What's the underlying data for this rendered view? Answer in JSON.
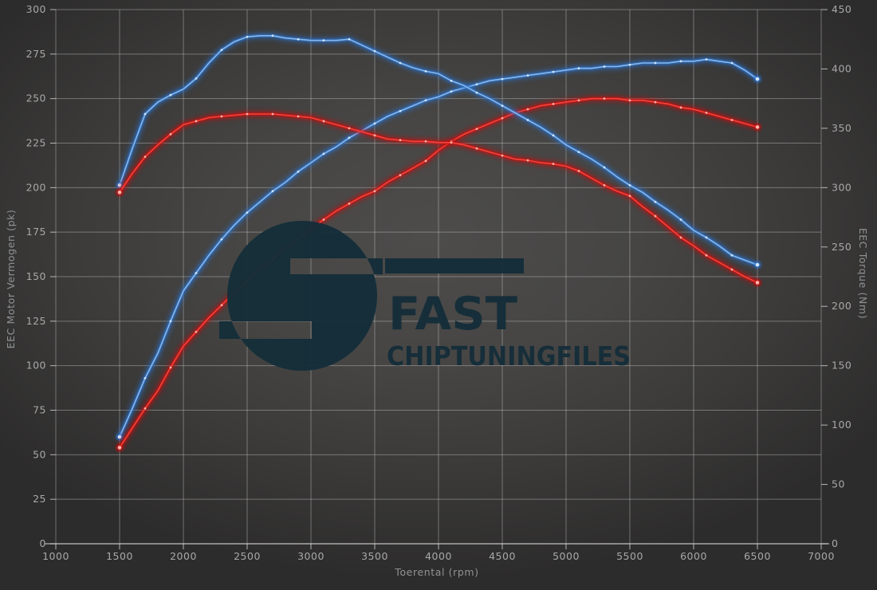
{
  "watermark": {
    "line1": "FAST",
    "line2": "CHIPTUNINGFILES",
    "color": "#152e39",
    "opacity": 0.97
  },
  "colors": {
    "background_center": "#4d4c4b",
    "background_edge": "#2d2c2c",
    "grid": "rgba(205,205,205,0.42)",
    "axis_line": "rgba(225,225,225,0.75)",
    "tick_text": "#a8a8a8",
    "blue": {
      "glow": "#2a72cf",
      "core": "#88b8ea",
      "dot": "#d5e7fa"
    },
    "red": {
      "glow": "#c91111",
      "core": "#f4423a",
      "dot": "#ffb4aa"
    }
  },
  "chart_data": {
    "type": "line",
    "title": "",
    "xlabel": "Toerental (rpm)",
    "ylabel_left": "EEC Motor Vermogen (pk)",
    "ylabel_right": "EEC Torque (Nm)",
    "x_range": [
      1000,
      7000
    ],
    "y_left_range": [
      0,
      300
    ],
    "y_right_range": [
      0,
      450
    ],
    "x_ticks": [
      "1000",
      "1500",
      "2000",
      "2500",
      "3000",
      "3500",
      "4000",
      "4500",
      "5000",
      "5500",
      "6000",
      "6500",
      "7000"
    ],
    "y_left_ticks": [
      "0",
      "25",
      "50",
      "75",
      "100",
      "125",
      "150",
      "175",
      "200",
      "225",
      "250",
      "275",
      "300"
    ],
    "y_right_ticks": [
      "0",
      "50",
      "100",
      "150",
      "200",
      "250",
      "300",
      "350",
      "400",
      "450"
    ],
    "grid": true,
    "legend": "none",
    "rpm_start": 1500,
    "rpm_step": 100,
    "series": [
      {
        "id": "blue-power",
        "color": "blue",
        "axis": "left",
        "unit": "pk",
        "values": [
          60,
          76,
          93,
          107,
          125,
          142,
          152,
          162,
          171,
          179,
          186,
          192,
          198,
          203,
          209,
          214,
          219,
          223,
          228,
          232,
          236,
          240,
          243,
          246,
          249,
          251,
          254,
          256,
          258,
          260,
          261,
          262,
          263,
          264,
          265,
          266,
          267,
          267,
          268,
          268,
          269,
          270,
          270,
          270,
          271,
          271,
          272,
          271,
          270,
          266,
          261
        ]
      },
      {
        "id": "red-power",
        "color": "red",
        "axis": "left",
        "unit": "pk",
        "values": [
          54,
          65,
          76,
          86,
          99,
          111,
          119,
          127,
          134,
          141,
          148,
          154,
          160,
          166,
          171,
          177,
          182,
          187,
          191,
          195,
          198,
          203,
          207,
          211,
          215,
          221,
          226,
          230,
          233,
          236,
          239,
          242,
          244,
          246,
          247,
          248,
          249,
          250,
          250,
          250,
          249,
          249,
          248,
          247,
          245,
          244,
          242,
          240,
          238,
          236,
          234
        ]
      },
      {
        "id": "blue-torque",
        "color": "blue",
        "axis": "right",
        "unit": "Nm",
        "values": [
          302,
          333,
          362,
          372,
          378,
          383,
          392,
          405,
          416,
          423,
          427,
          428,
          428,
          426,
          425,
          424,
          424,
          424,
          425,
          420,
          415,
          410,
          405,
          401,
          398,
          396,
          390,
          386,
          380,
          375,
          369,
          363,
          357,
          351,
          344,
          336,
          330,
          324,
          317,
          309,
          302,
          296,
          288,
          281,
          273,
          264,
          258,
          251,
          243,
          239,
          235
        ]
      },
      {
        "id": "red-torque",
        "color": "red",
        "axis": "right",
        "unit": "Nm",
        "values": [
          296,
          312,
          326,
          336,
          345,
          353,
          356,
          359,
          360,
          361,
          362,
          362,
          362,
          361,
          360,
          359,
          356,
          353,
          350,
          347,
          344,
          341,
          340,
          339,
          339,
          338,
          338,
          336,
          333,
          330,
          327,
          324,
          323,
          321,
          320,
          318,
          314,
          308,
          302,
          297,
          293,
          284,
          276,
          267,
          258,
          251,
          243,
          237,
          231,
          225,
          220
        ]
      }
    ]
  }
}
